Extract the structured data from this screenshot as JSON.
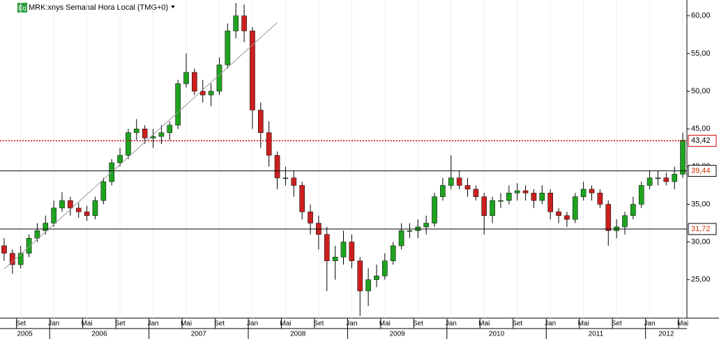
{
  "chart_data": {
    "type": "candlestick",
    "title": "MRK:xnys Semanal Hora Local (TMG+0)",
    "badge": "Eq",
    "x": [
      "2005-07",
      "2005-08",
      "2005-09",
      "2005-10",
      "2005-11",
      "2005-12",
      "2006-01",
      "2006-02",
      "2006-03",
      "2006-04",
      "2006-05",
      "2006-06",
      "2006-07",
      "2006-08",
      "2006-09",
      "2006-10",
      "2006-11",
      "2006-12",
      "2007-01",
      "2007-02",
      "2007-03",
      "2007-04",
      "2007-05",
      "2007-06",
      "2007-07",
      "2007-08",
      "2007-09",
      "2007-10",
      "2007-11",
      "2007-12",
      "2008-01",
      "2008-02",
      "2008-03",
      "2008-04",
      "2008-05",
      "2008-06",
      "2008-07",
      "2008-08",
      "2008-09",
      "2008-10",
      "2008-11",
      "2008-12",
      "2009-01",
      "2009-02",
      "2009-03",
      "2009-04",
      "2009-05",
      "2009-06",
      "2009-07",
      "2009-08",
      "2009-09",
      "2009-10",
      "2009-11",
      "2009-12",
      "2010-01",
      "2010-02",
      "2010-03",
      "2010-04",
      "2010-05",
      "2010-06",
      "2010-07",
      "2010-08",
      "2010-09",
      "2010-10",
      "2010-11",
      "2010-12",
      "2011-01",
      "2011-02",
      "2011-03",
      "2011-04",
      "2011-05",
      "2011-06",
      "2011-07",
      "2011-08",
      "2011-09",
      "2011-10",
      "2011-11",
      "2011-12",
      "2012-01",
      "2012-02",
      "2012-03",
      "2012-04",
      "2012-05"
    ],
    "open": [
      29.5,
      28.5,
      27.0,
      28.5,
      30.5,
      31.5,
      32.5,
      34.5,
      35.5,
      34.5,
      34.0,
      33.5,
      35.5,
      38.0,
      40.5,
      41.5,
      44.5,
      45.0,
      43.8,
      44.0,
      44.5,
      45.5,
      51.0,
      52.5,
      50.0,
      49.5,
      50.0,
      53.5,
      58.0,
      60.0,
      58.0,
      47.5,
      44.5,
      41.5,
      38.5,
      38.5,
      37.5,
      34.0,
      32.5,
      31.0,
      27.5,
      28.0,
      30.0,
      27.5,
      23.5,
      25.0,
      25.5,
      27.5,
      29.5,
      31.5,
      31.5,
      32.0,
      32.5,
      36.0,
      37.5,
      38.5,
      37.5,
      37.0,
      36.0,
      33.5,
      35.5,
      35.5,
      36.5,
      36.8,
      36.5,
      35.5,
      36.5,
      34.0,
      33.5,
      33.0,
      36.0,
      37.0,
      36.5,
      35.0,
      31.5,
      32.0,
      33.5,
      35.0,
      37.5,
      38.5,
      38.5,
      38.0,
      39.0
    ],
    "high": [
      30.5,
      29.0,
      29.5,
      31.0,
      32.5,
      33.5,
      35.5,
      36.6,
      36.0,
      35.2,
      34.8,
      36.0,
      38.5,
      41.0,
      42.5,
      45.0,
      46.3,
      45.5,
      45.0,
      45.5,
      46.0,
      51.5,
      55.0,
      53.0,
      51.5,
      51.0,
      54.5,
      59.0,
      61.7,
      61.5,
      58.5,
      48.5,
      46.0,
      42.0,
      40.0,
      39.5,
      38.0,
      35.0,
      33.5,
      32.0,
      29.5,
      31.5,
      31.0,
      28.0,
      26.5,
      27.0,
      28.5,
      30.0,
      32.5,
      32.5,
      33.0,
      33.5,
      36.5,
      38.5,
      41.5,
      39.5,
      38.5,
      37.5,
      36.5,
      36.0,
      36.5,
      37.5,
      37.8,
      37.5,
      37.0,
      37.5,
      37.0,
      34.5,
      34.0,
      36.5,
      38.0,
      37.5,
      37.0,
      35.5,
      33.0,
      34.0,
      36.0,
      38.0,
      39.5,
      39.5,
      39.2,
      40.0,
      44.5
    ],
    "low": [
      27.5,
      25.8,
      26.5,
      28.0,
      30.0,
      31.0,
      32.0,
      34.0,
      33.5,
      33.2,
      32.8,
      33.0,
      35.0,
      37.5,
      40.0,
      41.0,
      43.5,
      43.0,
      42.5,
      43.0,
      43.5,
      45.0,
      50.5,
      49.5,
      48.5,
      48.0,
      49.5,
      53.0,
      57.0,
      56.5,
      45.0,
      42.5,
      40.0,
      37.0,
      37.5,
      36.0,
      33.0,
      31.0,
      29.0,
      23.5,
      25.0,
      27.0,
      26.5,
      20.2,
      21.5,
      24.0,
      25.0,
      27.0,
      29.0,
      30.5,
      30.5,
      31.0,
      32.0,
      35.5,
      37.0,
      37.0,
      36.0,
      35.5,
      31.0,
      32.5,
      34.5,
      35.0,
      35.5,
      35.5,
      34.5,
      35.0,
      33.0,
      32.5,
      32.0,
      32.5,
      35.5,
      35.5,
      34.5,
      29.5,
      30.5,
      31.0,
      33.0,
      34.5,
      37.0,
      37.5,
      37.5,
      37.0,
      38.5
    ],
    "close": [
      28.5,
      27.0,
      28.5,
      30.5,
      31.5,
      32.5,
      34.5,
      35.5,
      34.5,
      34.0,
      33.5,
      35.5,
      38.0,
      40.5,
      41.5,
      44.5,
      45.0,
      43.8,
      44.0,
      44.5,
      45.5,
      51.0,
      52.5,
      50.0,
      49.5,
      50.0,
      53.5,
      58.0,
      60.0,
      58.0,
      47.5,
      44.5,
      41.5,
      38.5,
      38.5,
      37.5,
      34.0,
      32.5,
      31.0,
      27.5,
      28.0,
      30.0,
      27.5,
      23.5,
      25.0,
      25.5,
      27.5,
      29.5,
      31.5,
      31.5,
      32.0,
      32.5,
      36.0,
      37.5,
      38.5,
      37.5,
      37.0,
      36.0,
      33.5,
      35.5,
      35.5,
      36.5,
      36.8,
      36.5,
      35.5,
      36.5,
      34.0,
      33.5,
      33.0,
      36.0,
      37.0,
      36.5,
      35.0,
      31.5,
      32.0,
      33.5,
      35.0,
      37.5,
      38.5,
      38.5,
      38.0,
      39.0,
      43.5
    ],
    "up_color": "#1fa31f",
    "down_color": "#cc1f1f",
    "xlim": [
      "2005-07",
      "2012-06"
    ],
    "ylim": [
      19.9,
      62.1
    ],
    "yticks": [
      {
        "value": 25,
        "label": "25,00"
      },
      {
        "value": 30,
        "label": "30,00"
      },
      {
        "value": 35,
        "label": "35,00"
      },
      {
        "value": 40,
        "label": "40,00"
      },
      {
        "value": 45,
        "label": "45,00"
      },
      {
        "value": 50,
        "label": "50,00"
      },
      {
        "value": 55,
        "label": "55,00"
      },
      {
        "value": 60,
        "label": "60,00"
      }
    ],
    "xticks": [
      {
        "value": "2005-09",
        "label": "Set"
      },
      {
        "value": "2006-01",
        "label": "Jan"
      },
      {
        "value": "2006-05",
        "label": "Mai"
      },
      {
        "value": "2006-09",
        "label": "Set"
      },
      {
        "value": "2007-01",
        "label": "Jan"
      },
      {
        "value": "2007-05",
        "label": "Mai"
      },
      {
        "value": "2007-09",
        "label": "Set"
      },
      {
        "value": "2008-01",
        "label": "Jan"
      },
      {
        "value": "2008-05",
        "label": "Mai"
      },
      {
        "value": "2008-09",
        "label": "Set"
      },
      {
        "value": "2009-01",
        "label": "Jan"
      },
      {
        "value": "2009-05",
        "label": "Mai"
      },
      {
        "value": "2009-09",
        "label": "Set"
      },
      {
        "value": "2010-01",
        "label": "Jan"
      },
      {
        "value": "2010-05",
        "label": "Mai"
      },
      {
        "value": "2010-09",
        "label": "Set"
      },
      {
        "value": "2011-01",
        "label": "Jan"
      },
      {
        "value": "2011-05",
        "label": "Mai"
      },
      {
        "value": "2011-09",
        "label": "Set"
      },
      {
        "value": "2012-01",
        "label": "Jan"
      },
      {
        "value": "2012-05",
        "label": "Mai"
      }
    ],
    "years": [
      "2005",
      "2006",
      "2007",
      "2008",
      "2009",
      "2010",
      "2011",
      "2012"
    ],
    "levels": [
      {
        "value": 43.42,
        "label": "43,42",
        "color": "#cc0000",
        "style": "dotted"
      },
      {
        "value": 39.44,
        "label": "39,44",
        "color": "#000000",
        "style": "solid"
      },
      {
        "value": 31.72,
        "label": "31,72",
        "color": "#000000",
        "style": "solid"
      }
    ],
    "trendline": {
      "x": [
        "2005-07",
        "2008-04"
      ],
      "y": [
        26.4,
        59.1
      ],
      "color": "#999999"
    }
  }
}
